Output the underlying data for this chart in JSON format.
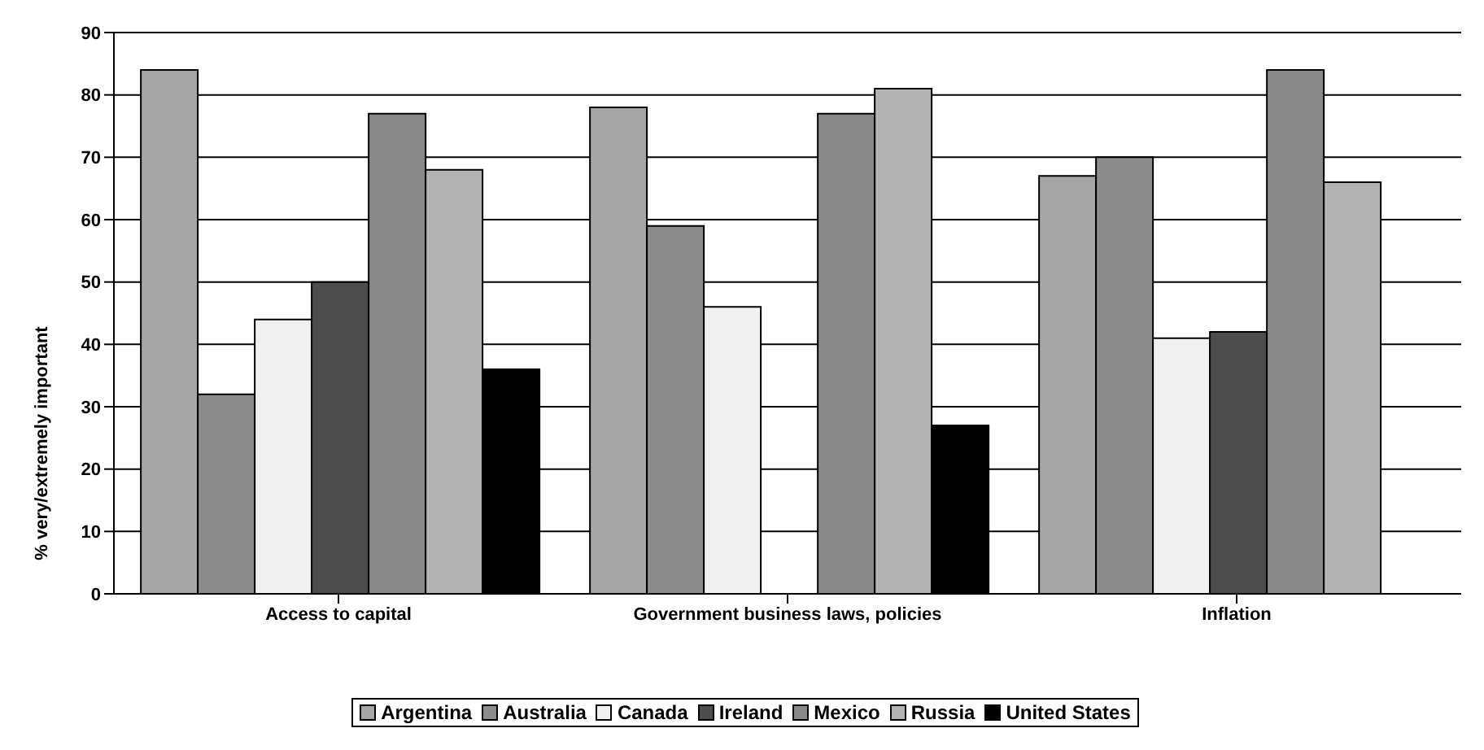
{
  "chart_data": {
    "type": "bar",
    "ylabel": "% very/extremely important",
    "categories": [
      "Access to capital",
      "Government business laws, policies",
      "Inflation"
    ],
    "series": [
      {
        "name": "Argentina",
        "color": "#a6a6a6",
        "values": [
          84,
          78,
          67
        ]
      },
      {
        "name": "Australia",
        "color": "#8c8c8c",
        "values": [
          32,
          59,
          70
        ]
      },
      {
        "name": "Canada",
        "color": "#f0f0f0",
        "values": [
          44,
          46,
          41
        ]
      },
      {
        "name": "Ireland",
        "color": "#4d4d4d",
        "values": [
          50,
          null,
          42
        ]
      },
      {
        "name": "Mexico",
        "color": "#888888",
        "values": [
          77,
          77,
          84
        ]
      },
      {
        "name": "Russia",
        "color": "#b3b3b3",
        "values": [
          68,
          81,
          66
        ]
      },
      {
        "name": "United States",
        "color": "#000000",
        "values": [
          36,
          27,
          null
        ]
      }
    ],
    "ylim": [
      0,
      90
    ],
    "yticks": [
      0,
      10,
      20,
      30,
      40,
      50,
      60,
      70,
      80,
      90
    ],
    "grid": "y",
    "legend": "bottom"
  }
}
